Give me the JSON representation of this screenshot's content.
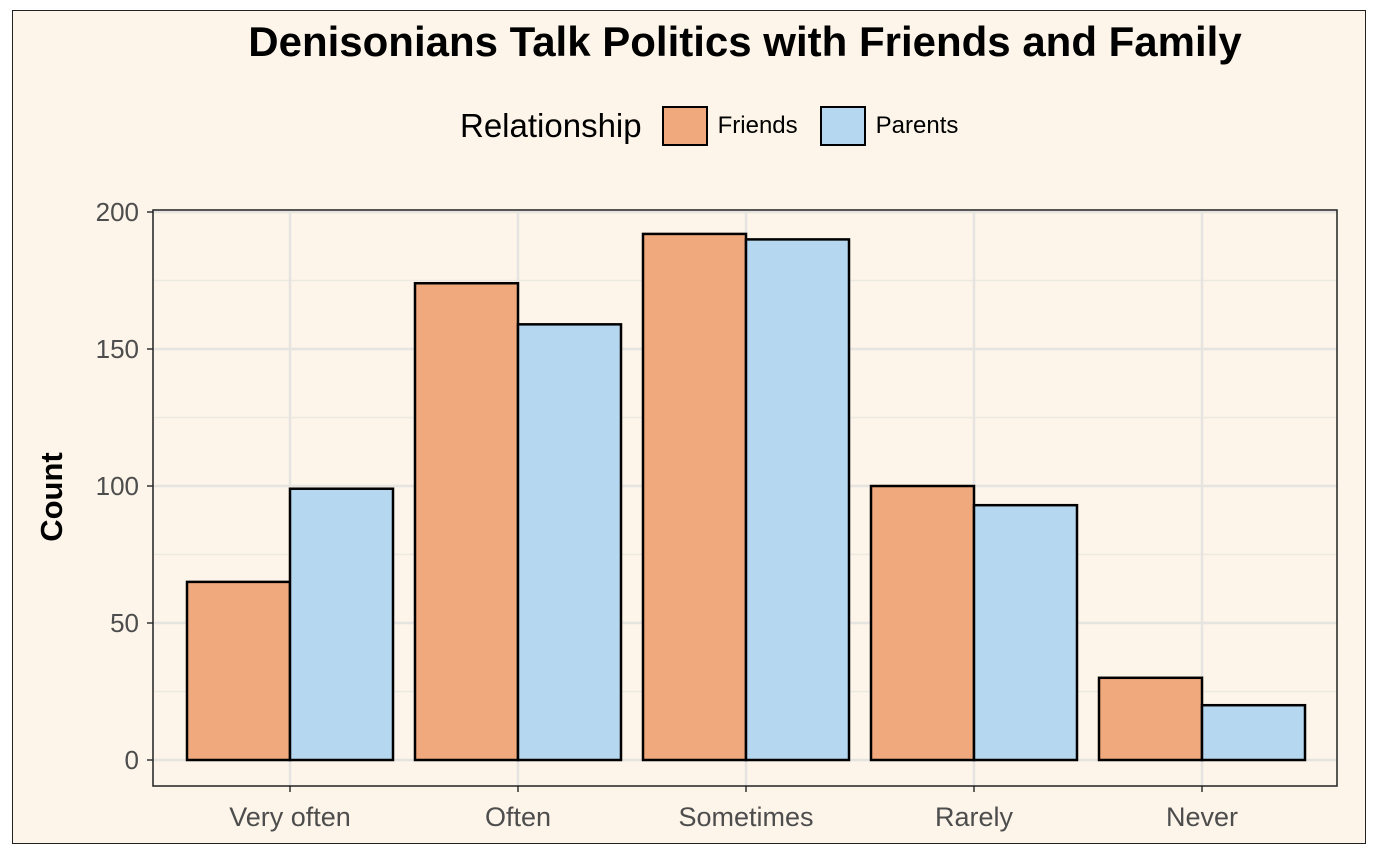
{
  "chart_data": {
    "type": "bar",
    "title": "Denisonians Talk Politics with Friends and Family",
    "xlabel": "",
    "ylabel": "Count",
    "ylim": [
      0,
      200
    ],
    "yticks": [
      0,
      50,
      100,
      150,
      200
    ],
    "categories": [
      "Very often",
      "Often",
      "Sometimes",
      "Rarely",
      "Never"
    ],
    "legend": {
      "title": "Relationship",
      "placement": "top"
    },
    "grid": true,
    "series": [
      {
        "name": "Friends",
        "color": "#f0a97c",
        "values": [
          65,
          174,
          192,
          100,
          30
        ]
      },
      {
        "name": "Parents",
        "color": "#b5d8f0",
        "values": [
          99,
          159,
          190,
          93,
          20
        ]
      }
    ]
  }
}
